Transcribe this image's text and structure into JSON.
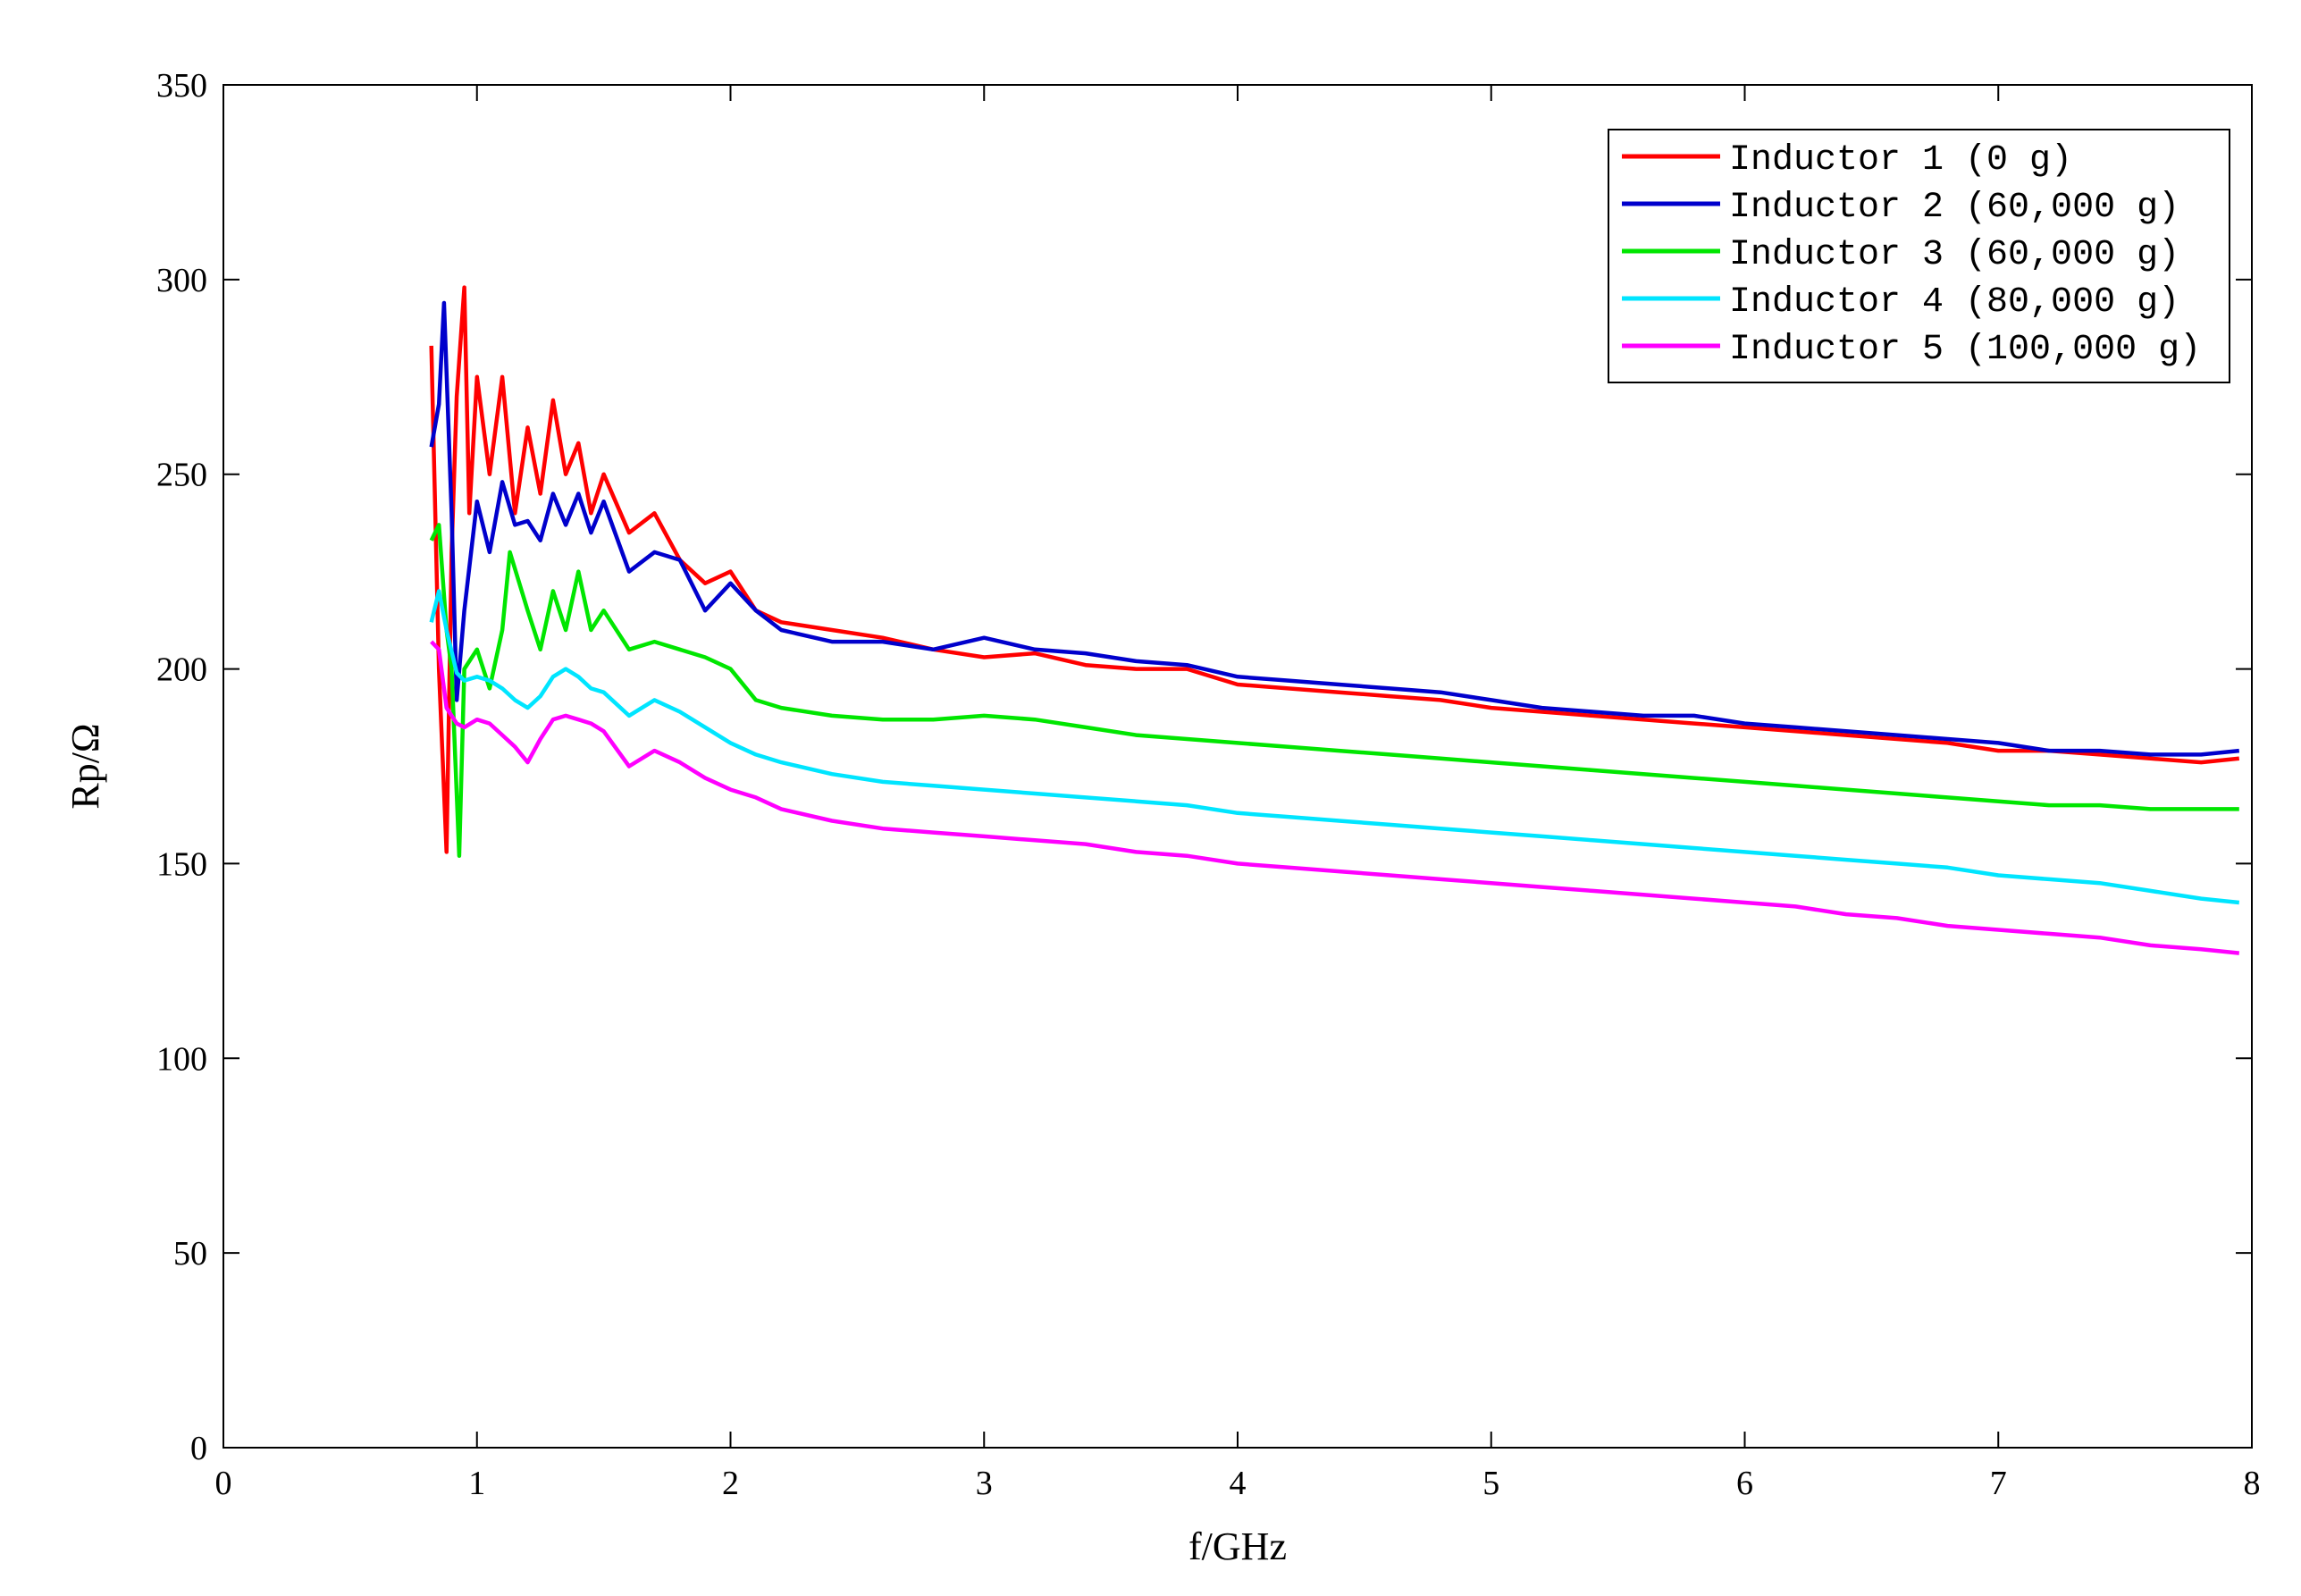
{
  "chart_data": {
    "type": "line",
    "xlabel": "f/GHz",
    "ylabel": "Rp/Ω",
    "xlim": [
      0,
      8
    ],
    "ylim": [
      0,
      350
    ],
    "xticks": [
      0,
      1,
      2,
      3,
      4,
      5,
      6,
      7,
      8
    ],
    "yticks": [
      0,
      50,
      100,
      150,
      200,
      250,
      300,
      350
    ],
    "grid": false,
    "legend_position": "top-right",
    "series": [
      {
        "name": "Inductor 1 (0 g)",
        "color": "#ff0000",
        "x": [
          0.82,
          0.85,
          0.88,
          0.9,
          0.92,
          0.95,
          0.97,
          1.0,
          1.05,
          1.1,
          1.15,
          1.2,
          1.25,
          1.3,
          1.35,
          1.4,
          1.45,
          1.5,
          1.6,
          1.7,
          1.8,
          1.9,
          2.0,
          2.1,
          2.2,
          2.4,
          2.6,
          2.8,
          3.0,
          3.2,
          3.4,
          3.6,
          3.8,
          4.0,
          4.2,
          4.4,
          4.6,
          4.8,
          5.0,
          5.2,
          5.4,
          5.6,
          5.8,
          6.0,
          6.2,
          6.4,
          6.6,
          6.8,
          7.0,
          7.2,
          7.4,
          7.6,
          7.8,
          7.95
        ],
        "y": [
          283,
          200,
          153,
          230,
          270,
          298,
          240,
          275,
          250,
          275,
          240,
          262,
          245,
          269,
          250,
          258,
          240,
          250,
          235,
          240,
          228,
          222,
          225,
          215,
          212,
          210,
          208,
          205,
          203,
          204,
          201,
          200,
          200,
          196,
          195,
          194,
          193,
          192,
          190,
          189,
          188,
          187,
          186,
          185,
          184,
          183,
          182,
          181,
          179,
          179,
          178,
          177,
          176,
          177
        ]
      },
      {
        "name": "Inductor 2 (60,000 g)",
        "color": "#0000cc",
        "x": [
          0.82,
          0.85,
          0.87,
          0.9,
          0.92,
          0.95,
          1.0,
          1.05,
          1.1,
          1.15,
          1.2,
          1.25,
          1.3,
          1.35,
          1.4,
          1.45,
          1.5,
          1.6,
          1.7,
          1.8,
          1.9,
          2.0,
          2.1,
          2.2,
          2.4,
          2.6,
          2.8,
          3.0,
          3.2,
          3.4,
          3.6,
          3.8,
          4.0,
          4.2,
          4.4,
          4.6,
          4.8,
          5.0,
          5.2,
          5.4,
          5.6,
          5.8,
          6.0,
          6.2,
          6.4,
          6.6,
          6.8,
          7.0,
          7.2,
          7.4,
          7.6,
          7.8,
          7.95
        ],
        "y": [
          257,
          268,
          294,
          240,
          192,
          215,
          243,
          230,
          248,
          237,
          238,
          233,
          245,
          237,
          245,
          235,
          243,
          225,
          230,
          228,
          215,
          222,
          215,
          210,
          207,
          207,
          205,
          208,
          205,
          204,
          202,
          201,
          198,
          197,
          196,
          195,
          194,
          192,
          190,
          189,
          188,
          188,
          186,
          185,
          184,
          183,
          182,
          181,
          179,
          179,
          178,
          178,
          179
        ]
      },
      {
        "name": "Inductor 3 (60,000 g)",
        "color": "#00e600",
        "x": [
          0.82,
          0.85,
          0.88,
          0.9,
          0.93,
          0.95,
          1.0,
          1.05,
          1.1,
          1.13,
          1.2,
          1.25,
          1.3,
          1.35,
          1.4,
          1.45,
          1.5,
          1.6,
          1.7,
          1.8,
          1.9,
          2.0,
          2.1,
          2.2,
          2.4,
          2.6,
          2.8,
          3.0,
          3.2,
          3.4,
          3.6,
          3.8,
          4.0,
          4.2,
          4.4,
          4.6,
          4.8,
          5.0,
          5.2,
          5.4,
          5.6,
          5.8,
          6.0,
          6.2,
          6.4,
          6.6,
          6.8,
          7.0,
          7.2,
          7.4,
          7.6,
          7.8,
          7.95
        ],
        "y": [
          233,
          237,
          210,
          200,
          152,
          200,
          205,
          195,
          210,
          230,
          215,
          205,
          220,
          210,
          225,
          210,
          215,
          205,
          207,
          205,
          203,
          200,
          192,
          190,
          188,
          187,
          187,
          188,
          187,
          185,
          183,
          182,
          181,
          180,
          179,
          178,
          177,
          176,
          175,
          174,
          173,
          172,
          171,
          170,
          169,
          168,
          167,
          166,
          165,
          165,
          164,
          164,
          164
        ]
      },
      {
        "name": "Inductor 4 (80,000 g)",
        "color": "#00e5ff",
        "x": [
          0.82,
          0.85,
          0.88,
          0.92,
          0.95,
          1.0,
          1.05,
          1.1,
          1.15,
          1.2,
          1.25,
          1.3,
          1.35,
          1.4,
          1.45,
          1.5,
          1.6,
          1.7,
          1.8,
          1.9,
          2.0,
          2.1,
          2.2,
          2.4,
          2.6,
          2.8,
          3.0,
          3.2,
          3.4,
          3.6,
          3.8,
          4.0,
          4.2,
          4.4,
          4.6,
          4.8,
          5.0,
          5.2,
          5.4,
          5.6,
          5.8,
          6.0,
          6.2,
          6.4,
          6.6,
          6.8,
          7.0,
          7.2,
          7.4,
          7.6,
          7.8,
          7.95
        ],
        "y": [
          212,
          220,
          210,
          199,
          197,
          198,
          197,
          195,
          192,
          190,
          193,
          198,
          200,
          198,
          195,
          194,
          188,
          192,
          189,
          185,
          181,
          178,
          176,
          173,
          171,
          170,
          169,
          168,
          167,
          166,
          165,
          163,
          162,
          161,
          160,
          159,
          158,
          157,
          156,
          155,
          154,
          153,
          152,
          151,
          150,
          149,
          147,
          146,
          145,
          143,
          141,
          140
        ]
      },
      {
        "name": "Inductor 5 (100,000 g)",
        "color": "#ff00ff",
        "x": [
          0.82,
          0.85,
          0.88,
          0.92,
          0.95,
          1.0,
          1.05,
          1.1,
          1.15,
          1.2,
          1.25,
          1.3,
          1.35,
          1.4,
          1.45,
          1.5,
          1.6,
          1.7,
          1.8,
          1.9,
          2.0,
          2.1,
          2.2,
          2.4,
          2.6,
          2.8,
          3.0,
          3.2,
          3.4,
          3.6,
          3.8,
          4.0,
          4.2,
          4.4,
          4.6,
          4.8,
          5.0,
          5.2,
          5.4,
          5.6,
          5.8,
          6.0,
          6.2,
          6.4,
          6.6,
          6.8,
          7.0,
          7.2,
          7.4,
          7.6,
          7.8,
          7.95
        ],
        "y": [
          207,
          205,
          190,
          186,
          185,
          187,
          186,
          183,
          180,
          176,
          182,
          187,
          188,
          187,
          186,
          184,
          175,
          179,
          176,
          172,
          169,
          167,
          164,
          161,
          159,
          158,
          157,
          156,
          155,
          153,
          152,
          150,
          149,
          148,
          147,
          146,
          145,
          144,
          143,
          142,
          141,
          140,
          139,
          137,
          136,
          134,
          133,
          132,
          131,
          129,
          128,
          127
        ]
      }
    ]
  }
}
